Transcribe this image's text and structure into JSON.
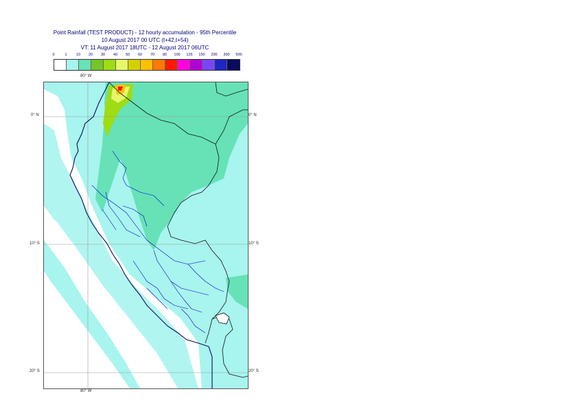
{
  "title": {
    "line1": "Point Rainfall (TEST PRODUCT) - 12 hourly accumulation - 95th Percentile",
    "line2": "10 August 2017 00 UTC (t+42,t+54)",
    "line3": "VT: 11 August 2017 18UTC - 12 August 2017 06UTC"
  },
  "legend": {
    "ticks": [
      "0",
      "1",
      "10",
      "20",
      "30",
      "40",
      "50",
      "60",
      "70",
      "80",
      "100",
      "125",
      "150",
      "200",
      "300",
      "500"
    ],
    "colors": [
      "#ffffff",
      "#a8f4ee",
      "#66e2b6",
      "#74c42c",
      "#9edc14",
      "#e6f86a",
      "#d4d000",
      "#ffc000",
      "#ff7a00",
      "#ff1a00",
      "#ff00e0",
      "#b400d4",
      "#7a46f4",
      "#2026c2",
      "#0a0a5e"
    ]
  },
  "map": {
    "lon_label_top": "80° W",
    "lon_label_bottom": "80° W",
    "lat_labels": [
      "0° N",
      "10° S",
      "20° S"
    ]
  }
}
